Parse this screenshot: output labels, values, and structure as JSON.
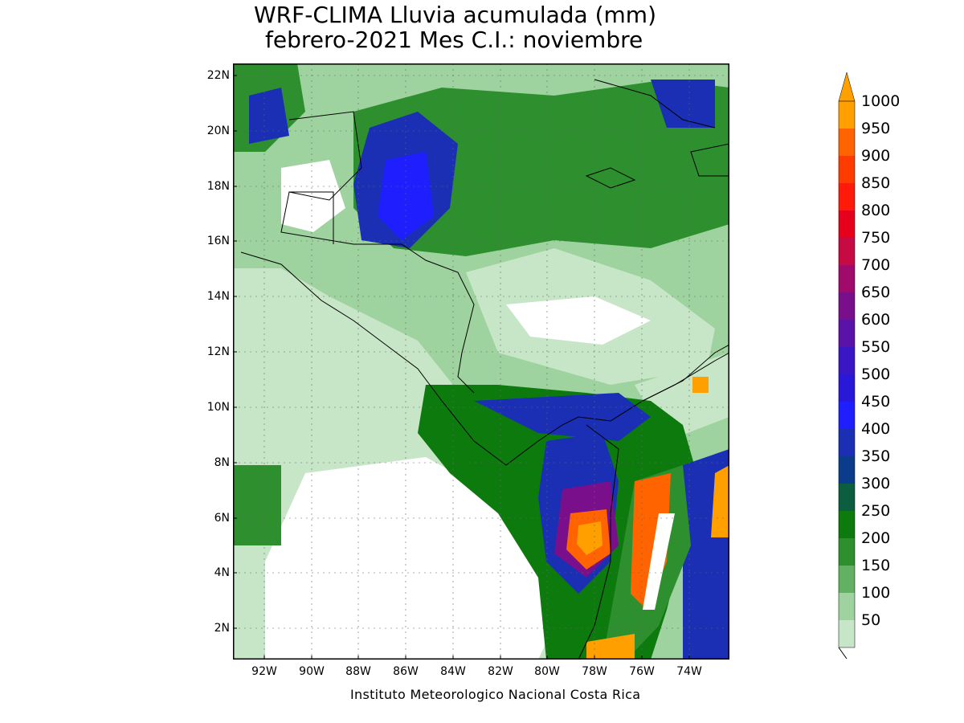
{
  "title": {
    "line1": "WRF-CLIMA Lluvia acumulada (mm)",
    "line2": "febrero-2021 Mes C.I.: noviembre"
  },
  "map": {
    "lat_labels": [
      "22N",
      "20N",
      "18N",
      "16N",
      "14N",
      "12N",
      "10N",
      "8N",
      "6N",
      "4N",
      "2N"
    ],
    "lon_labels": [
      "92W",
      "90W",
      "88W",
      "86W",
      "84W",
      "82W",
      "80W",
      "78W",
      "76W",
      "74W"
    ]
  },
  "colorbar": {
    "labels": [
      "1000",
      "950",
      "900",
      "850",
      "800",
      "750",
      "700",
      "650",
      "600",
      "550",
      "500",
      "450",
      "400",
      "350",
      "300",
      "250",
      "200",
      "150",
      "100",
      "50"
    ],
    "colors": {
      "c50": "#c7e6c7",
      "c100": "#9ed29e",
      "c150": "#62b062",
      "c200": "#2e8f2e",
      "c250": "#0d7a0d",
      "c300": "#0b5e3f",
      "c350": "#0b3c8c",
      "c400": "#1a2fb4",
      "c450": "#1e1eff",
      "c500": "#2a18d8",
      "c550": "#3a17c4",
      "c600": "#5a12a8",
      "c650": "#7a0f8c",
      "c700": "#a00a6a",
      "c750": "#c80a44",
      "c800": "#e6001c",
      "c850": "#ff1a0a",
      "c900": "#ff3c00",
      "c950": "#ff6400",
      "c1000": "#ffa000"
    }
  },
  "credit": "Instituto Meteorologico Nacional Costa Rica"
}
